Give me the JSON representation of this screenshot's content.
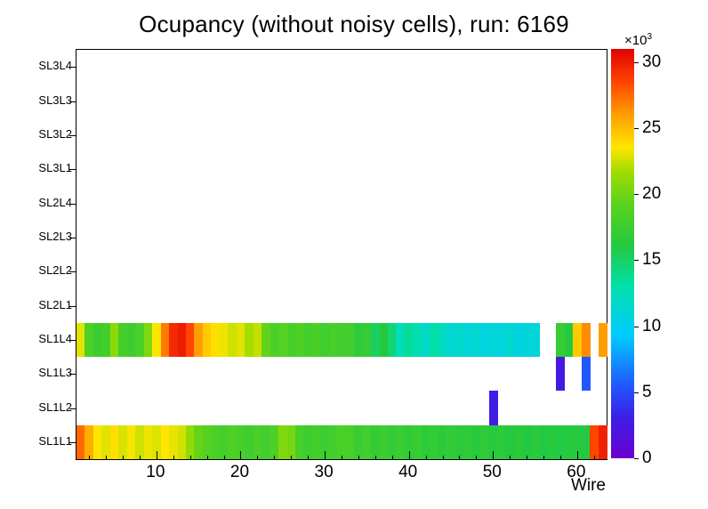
{
  "title": "Ocupancy (without noisy cells), run: 6169",
  "xlabel": "Wire",
  "colorbar": {
    "multiplier": "×10",
    "exponent": "3",
    "ticks": [
      0,
      5,
      10,
      15,
      20,
      25,
      30
    ]
  },
  "palette": [
    {
      "t": 0.0,
      "color": "#6a00d0"
    },
    {
      "t": 0.1,
      "color": "#3d1fe6"
    },
    {
      "t": 0.18,
      "color": "#1f5aff"
    },
    {
      "t": 0.3,
      "color": "#00ccff"
    },
    {
      "t": 0.42,
      "color": "#00e0aa"
    },
    {
      "t": 0.52,
      "color": "#23c940"
    },
    {
      "t": 0.62,
      "color": "#5ad21e"
    },
    {
      "t": 0.7,
      "color": "#a0dc00"
    },
    {
      "t": 0.76,
      "color": "#ffe600"
    },
    {
      "t": 0.84,
      "color": "#ff9d00"
    },
    {
      "t": 0.92,
      "color": "#ff4400"
    },
    {
      "t": 1.0,
      "color": "#e10000"
    }
  ],
  "chart_data": {
    "type": "heatmap",
    "title": "Ocupancy (without noisy cells), run: 6169",
    "xlabel": "Wire",
    "n_wires": 63,
    "x_ticks": [
      10,
      20,
      30,
      40,
      50,
      60
    ],
    "x_minor_tick_step": 2,
    "vmin": 0,
    "vmax": 31000,
    "legend_position": "right-colorbar",
    "row_order": "bottom_to_top",
    "rows": [
      "SL1L1",
      "SL1L2",
      "SL1L3",
      "SL1L4",
      "SL2L1",
      "SL2L2",
      "SL2L3",
      "SL2L4",
      "SL3L1",
      "SL3L2",
      "SL3L3",
      "SL3L4"
    ],
    "values": {
      "SL1L1": [
        27500,
        25500,
        23500,
        23000,
        23800,
        22800,
        23400,
        22600,
        23200,
        22900,
        23600,
        23100,
        22700,
        21200,
        19600,
        19000,
        18400,
        17900,
        18600,
        18100,
        17700,
        18300,
        17800,
        18500,
        20600,
        20200,
        18200,
        17600,
        18000,
        17500,
        17900,
        18400,
        18200,
        17400,
        17800,
        17100,
        17600,
        17000,
        17500,
        16800,
        17300,
        16700,
        17100,
        16600,
        17000,
        16500,
        16900,
        16400,
        16800,
        16300,
        16700,
        16200,
        16600,
        16100,
        16500,
        16000,
        16400,
        15900,
        16300,
        16200,
        16100,
        28500,
        29800
      ],
      "SL1L2": [
        0,
        0,
        0,
        0,
        0,
        0,
        0,
        0,
        0,
        0,
        0,
        0,
        0,
        0,
        0,
        0,
        0,
        0,
        0,
        0,
        0,
        0,
        0,
        0,
        0,
        0,
        0,
        0,
        0,
        0,
        0,
        0,
        0,
        0,
        0,
        0,
        0,
        0,
        0,
        0,
        0,
        0,
        0,
        0,
        0,
        0,
        0,
        0,
        0,
        2800,
        0,
        0,
        0,
        0,
        0,
        0,
        0,
        0,
        0,
        0,
        0,
        0,
        0
      ],
      "SL1L3": [
        0,
        0,
        0,
        0,
        0,
        0,
        0,
        0,
        0,
        0,
        0,
        0,
        0,
        0,
        0,
        0,
        0,
        0,
        0,
        0,
        0,
        0,
        0,
        0,
        0,
        0,
        0,
        0,
        0,
        0,
        0,
        0,
        0,
        0,
        0,
        0,
        0,
        0,
        0,
        0,
        0,
        0,
        0,
        0,
        0,
        0,
        0,
        0,
        0,
        0,
        0,
        0,
        0,
        0,
        0,
        0,
        0,
        2600,
        0,
        0,
        5500,
        0,
        0
      ],
      "SL1L4": [
        23000,
        18500,
        17500,
        18000,
        21000,
        18000,
        17600,
        18400,
        20500,
        23500,
        27000,
        29500,
        30000,
        28500,
        26000,
        24500,
        23800,
        23200,
        22600,
        23000,
        21800,
        22400,
        19500,
        18400,
        18900,
        18100,
        18600,
        17900,
        18300,
        17700,
        18200,
        17800,
        18000,
        16800,
        17200,
        15200,
        16200,
        14600,
        12400,
        13600,
        12800,
        11800,
        13100,
        12200,
        11200,
        11700,
        10900,
        11400,
        10600,
        11100,
        10800,
        11500,
        10500,
        10900,
        11000,
        0,
        0,
        17200,
        16400,
        24500,
        26500,
        0,
        26000
      ]
    }
  }
}
